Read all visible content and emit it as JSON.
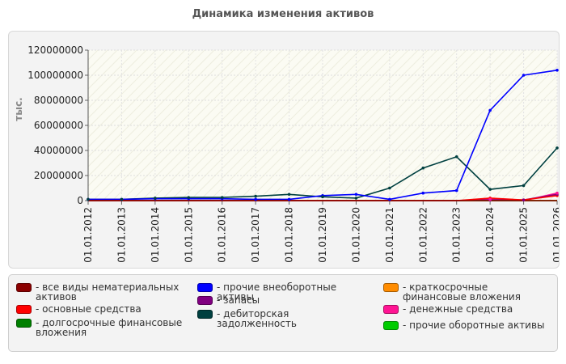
{
  "chart_data": {
    "type": "line",
    "title": "Динамика изменения активов",
    "ylabel": "тыс.",
    "xlabel": "",
    "ylim": [
      0,
      120000000
    ],
    "yticks": [
      "0",
      "20000000",
      "40000000",
      "60000000",
      "80000000",
      "100000000",
      "120000000"
    ],
    "categories": [
      "01.01.2012",
      "01.01.2013",
      "01.01.2014",
      "01.01.2015",
      "01.01.2016",
      "01.01.2017",
      "01.01.2018",
      "01.01.2019",
      "01.01.2020",
      "01.01.2021",
      "01.01.2022",
      "01.01.2023",
      "01.01.2024",
      "01.01.2025",
      "01.01.2026"
    ],
    "grid": true,
    "legend_position": "bottom",
    "series": [
      {
        "name": "- все виды нематериальных активов",
        "color": "#8b0000",
        "values": [
          0,
          0,
          0,
          0,
          0,
          0,
          0,
          0,
          0,
          0,
          0,
          0,
          0,
          0,
          0
        ]
      },
      {
        "name": "- основные средства",
        "color": "#ff0000",
        "values": [
          0,
          0,
          0,
          0,
          0,
          0,
          0,
          0,
          0,
          0,
          0,
          0,
          2000000,
          500000,
          4000000
        ]
      },
      {
        "name": "- долгосрочные финансовые вложения",
        "color": "#008000",
        "values": [
          0,
          0,
          0,
          0,
          0,
          0,
          0,
          0,
          0,
          0,
          0,
          0,
          0,
          0,
          0
        ]
      },
      {
        "name": "- прочие внеоборотные активы",
        "color": "#0000ff",
        "values": [
          1000000,
          1000000,
          1500000,
          1500000,
          1500000,
          1000000,
          1000000,
          4000000,
          5000000,
          1000000,
          6000000,
          8000000,
          72000000,
          100000000,
          104000000
        ]
      },
      {
        "name": "- запасы",
        "color": "#800080",
        "values": [
          0,
          0,
          0,
          0,
          0,
          0,
          0,
          0,
          0,
          0,
          0,
          0,
          500000,
          500000,
          5000000
        ]
      },
      {
        "name": "- дебиторская задолженность",
        "color": "#004040",
        "values": [
          1000000,
          1000000,
          2000000,
          2500000,
          2500000,
          3500000,
          5000000,
          3000000,
          2000000,
          10000000,
          26000000,
          35000000,
          9000000,
          12000000,
          42000000
        ]
      },
      {
        "name": "- краткосрочные финансовые вложения",
        "color": "#ff8c00",
        "values": [
          0,
          0,
          0,
          0,
          0,
          0,
          0,
          0,
          0,
          0,
          0,
          0,
          0,
          0,
          0
        ]
      },
      {
        "name": "- денежные средства",
        "color": "#ff1493",
        "values": [
          0,
          0,
          0,
          0,
          0,
          0,
          0,
          0,
          0,
          0,
          0,
          0,
          1000000,
          0,
          6000000
        ]
      },
      {
        "name": "- прочие оборотные активы",
        "color": "#00cc00",
        "values": [
          0,
          0,
          0,
          0,
          0,
          0,
          0,
          0,
          0,
          0,
          0,
          0,
          0,
          0,
          0
        ]
      }
    ]
  }
}
